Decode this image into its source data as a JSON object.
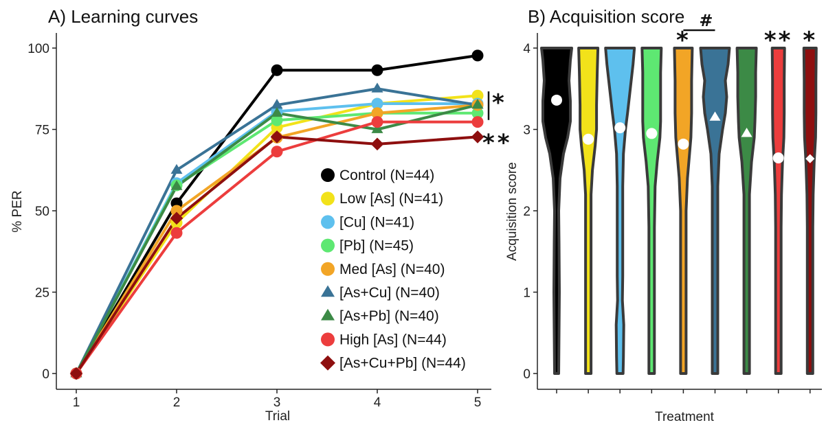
{
  "chart_data": [
    {
      "panel": "A",
      "type": "line",
      "title": "A) Learning curves",
      "xlabel": "Trial",
      "ylabel": "% PER",
      "x": [
        1,
        2,
        3,
        4,
        5
      ],
      "xlim": [
        1,
        5
      ],
      "ylim": [
        0,
        100
      ],
      "yticks": [
        0,
        25,
        50,
        75,
        100
      ],
      "grid": false,
      "legend_position": "bottom-right",
      "series": [
        {
          "name": "Control (N=44)",
          "color": "#000000",
          "marker": "circle",
          "values": [
            0,
            52.3,
            93.2,
            93.2,
            97.7
          ]
        },
        {
          "name": "Low [As] (N=41)",
          "color": "#f2e21a",
          "marker": "circle",
          "values": [
            0,
            46.3,
            75.6,
            82.9,
            85.4
          ]
        },
        {
          "name": "[Cu] (N=41)",
          "color": "#5ec0ee",
          "marker": "circle",
          "values": [
            0,
            58.5,
            80.5,
            82.9,
            82.9
          ]
        },
        {
          "name": "[Pb] (N=45)",
          "color": "#5ee872",
          "marker": "circle",
          "values": [
            0,
            57.8,
            77.8,
            80.0,
            80.0
          ]
        },
        {
          "name": "Med [As] (N=40)",
          "color": "#f2a526",
          "marker": "circle",
          "values": [
            0,
            50.0,
            72.5,
            80.0,
            82.5
          ]
        },
        {
          "name": "[As+Cu] (N=40)",
          "color": "#3a7396",
          "marker": "triangle",
          "values": [
            0,
            62.5,
            82.5,
            87.5,
            82.5
          ]
        },
        {
          "name": "[As+Pb] (N=40)",
          "color": "#3c8a46",
          "marker": "triangle",
          "values": [
            0,
            57.5,
            80.0,
            75.0,
            82.5
          ]
        },
        {
          "name": "High [As] (N=44)",
          "color": "#ec3d3d",
          "marker": "circle",
          "values": [
            0,
            43.2,
            68.2,
            77.3,
            77.3
          ]
        },
        {
          "name": "[As+Cu+Pb] (N=44)",
          "color": "#8e0f0f",
          "marker": "diamond",
          "values": [
            0,
            47.7,
            72.7,
            70.5,
            72.7
          ]
        }
      ],
      "annotations": [
        {
          "text": "*",
          "y_range": [
            80,
            85
          ]
        },
        {
          "text": "**",
          "y": 72.7
        }
      ]
    },
    {
      "panel": "B",
      "type": "violin",
      "title": "B) Acquisition score",
      "xlabel": "Treatment",
      "ylabel": "Acquisition score",
      "ylim": [
        0,
        4
      ],
      "yticks": [
        0,
        1,
        2,
        3,
        4
      ],
      "grid": false,
      "groups": [
        {
          "fill": "#000000",
          "marker": "circle",
          "mean": 3.36,
          "significance": ""
        },
        {
          "fill": "#f2e21a",
          "marker": "circle",
          "mean": 2.88,
          "significance": ""
        },
        {
          "fill": "#5ec0ee",
          "marker": "circle",
          "mean": 3.02,
          "significance": ""
        },
        {
          "fill": "#5ee872",
          "marker": "circle",
          "mean": 2.95,
          "significance": ""
        },
        {
          "fill": "#f2a526",
          "marker": "circle",
          "mean": 2.82,
          "significance": "*"
        },
        {
          "fill": "#3a7396",
          "marker": "triangle",
          "mean": 3.15,
          "significance": ""
        },
        {
          "fill": "#3c8a46",
          "marker": "triangle",
          "mean": 2.95,
          "significance": ""
        },
        {
          "fill": "#ec3d3d",
          "marker": "circle",
          "mean": 2.65,
          "significance": "**"
        },
        {
          "fill": "#8e0f0f",
          "marker": "diamond",
          "mean": 2.64,
          "significance": "*"
        }
      ],
      "bracket": {
        "text": "#",
        "between": [
          5,
          6
        ]
      }
    }
  ]
}
